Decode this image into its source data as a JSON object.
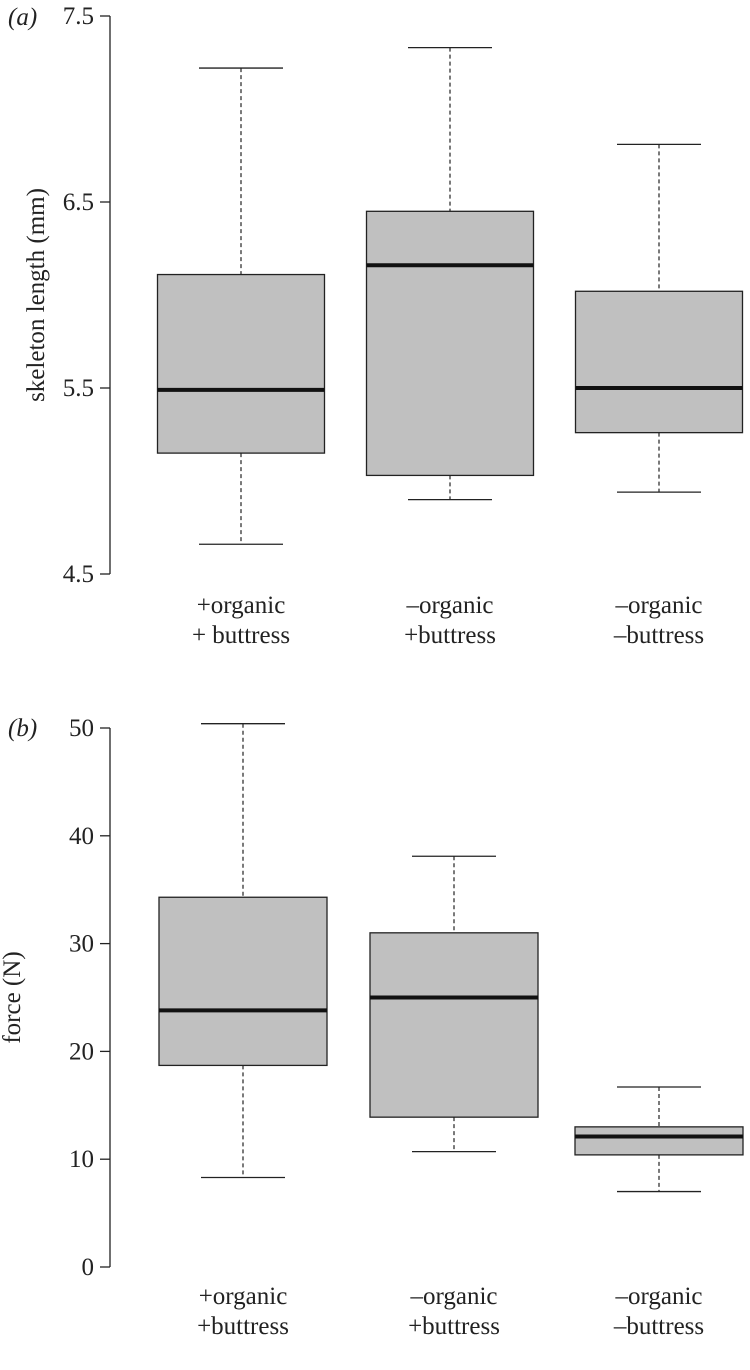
{
  "colors": {
    "box_fill": "#c0c0c0",
    "stroke": "#222222",
    "median": "#111111",
    "background": "#ffffff"
  },
  "chart_data": [
    {
      "type": "box",
      "panel_label": "(a)",
      "ylabel": "skeleton length (mm)",
      "ylim": [
        4.5,
        7.5
      ],
      "yticks": [
        "4.5",
        "5.5",
        "6.5",
        "7.5"
      ],
      "grid": false,
      "categories": [
        [
          "+organic",
          "+ buttress"
        ],
        [
          "–organic",
          "+buttress"
        ],
        [
          "–organic",
          "–buttress"
        ]
      ],
      "boxes": [
        {
          "min": 4.66,
          "q1": 5.15,
          "median": 5.49,
          "q3": 6.11,
          "max": 7.22
        },
        {
          "min": 4.9,
          "q1": 5.03,
          "median": 6.16,
          "q3": 6.45,
          "max": 7.33
        },
        {
          "min": 4.94,
          "q1": 5.26,
          "median": 5.5,
          "q3": 6.02,
          "max": 6.81
        }
      ]
    },
    {
      "type": "box",
      "panel_label": "(b)",
      "ylabel": "force (N)",
      "ylim": [
        0,
        50
      ],
      "yticks": [
        "0",
        "10",
        "20",
        "30",
        "40",
        "50"
      ],
      "grid": false,
      "categories": [
        [
          "+organic",
          "+buttress"
        ],
        [
          "–organic",
          "+buttress"
        ],
        [
          "–organic",
          "–buttress"
        ]
      ],
      "boxes": [
        {
          "min": 8.3,
          "q1": 18.7,
          "median": 23.8,
          "q3": 34.3,
          "max": 50.4
        },
        {
          "min": 10.7,
          "q1": 13.9,
          "median": 25.0,
          "q3": 31.0,
          "max": 38.1
        },
        {
          "min": 7.0,
          "q1": 10.4,
          "median": 12.1,
          "q3": 13.0,
          "max": 16.7
        }
      ]
    }
  ]
}
